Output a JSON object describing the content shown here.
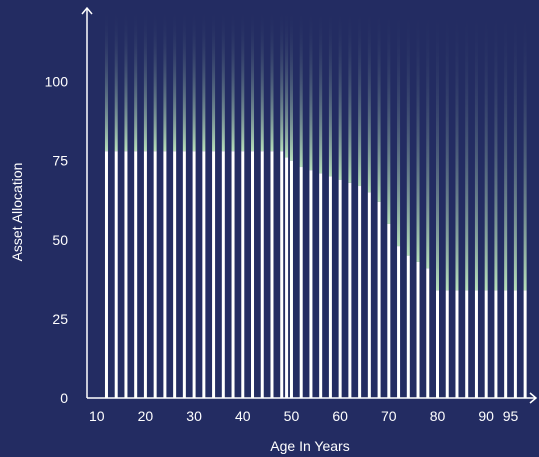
{
  "chart_data": {
    "type": "bar",
    "xlabel": "Age In Years",
    "ylabel": "Asset Allocation",
    "x_ticks": [
      "10",
      "20",
      "30",
      "40",
      "50",
      "60",
      "70",
      "80",
      "90",
      "95"
    ],
    "y_ticks": [
      "0",
      "25",
      "50",
      "75",
      "100"
    ],
    "xlim": [
      8,
      99
    ],
    "ylim": [
      0,
      122
    ],
    "x": [
      12,
      14,
      16,
      18,
      20,
      22,
      24,
      26,
      28,
      30,
      32,
      34,
      36,
      38,
      40,
      42,
      44,
      46,
      48,
      49,
      50,
      52,
      54,
      56,
      58,
      60,
      62,
      64,
      66,
      68,
      70,
      72,
      74,
      76,
      78,
      80,
      82,
      84,
      86,
      88,
      90,
      92,
      94,
      96,
      98
    ],
    "series": [
      {
        "values": [
          78,
          78,
          78,
          78,
          78,
          78,
          78,
          78,
          78,
          78,
          78,
          78,
          78,
          78,
          78,
          78,
          78,
          78,
          78,
          76,
          75,
          73,
          72,
          71,
          70,
          69,
          68,
          67,
          65,
          62,
          55,
          48,
          45,
          43,
          41,
          34,
          34,
          34,
          34,
          34,
          34,
          34,
          34,
          34,
          34
        ]
      }
    ],
    "colors": {
      "background": "#232c62",
      "bar": "#ffffff",
      "gradient_top": "#232c62",
      "gradient_bottom": "#b7dfbb",
      "axis": "#ffffff"
    },
    "grid": false
  }
}
